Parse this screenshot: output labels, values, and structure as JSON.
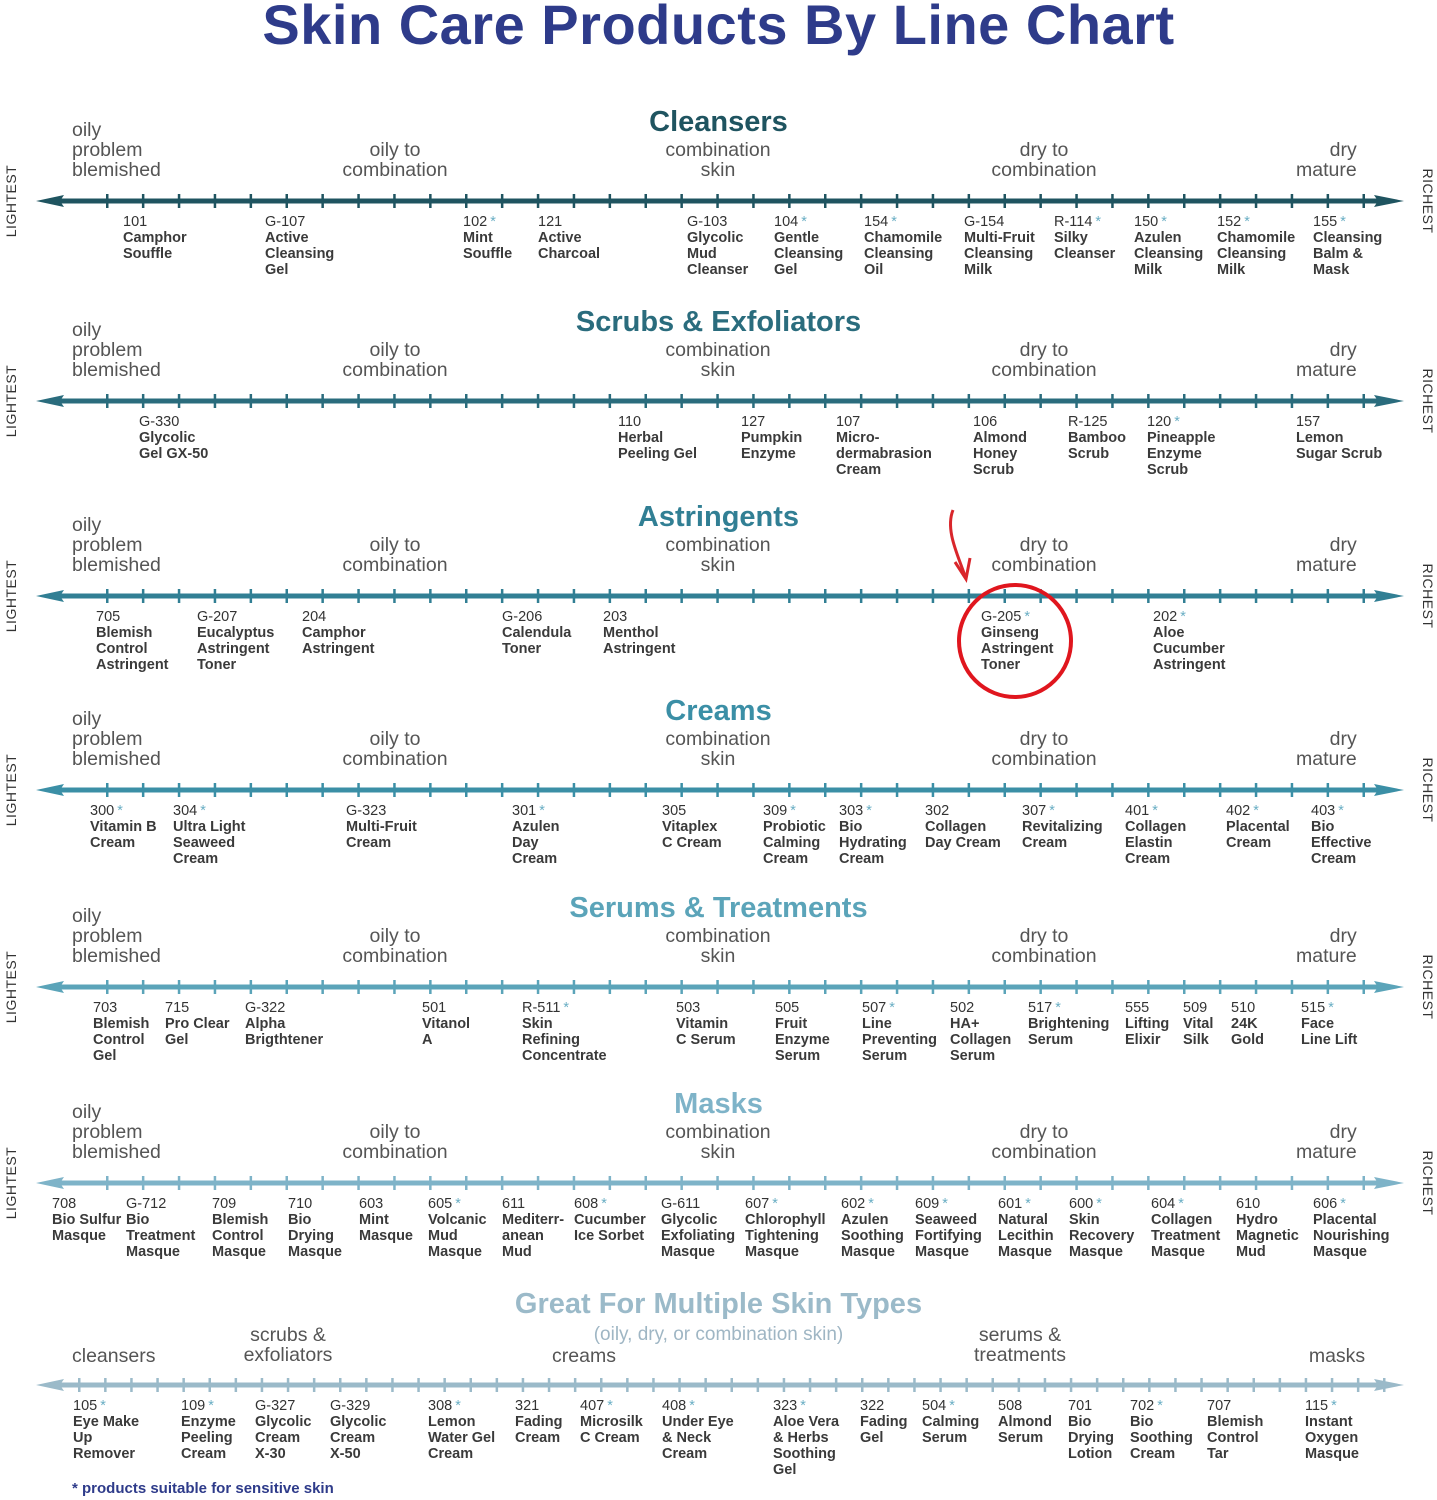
{
  "title": "Skin Care Products By Line Chart",
  "side_labels": {
    "left": "LIGHTEST",
    "right": "RICHEST"
  },
  "zones": {
    "oily": [
      "oily",
      "problem",
      "blemished"
    ],
    "oily_combo": [
      "oily to",
      "combination"
    ],
    "combo": [
      "combination",
      "skin"
    ],
    "dry_combo": [
      "dry to",
      "combination"
    ],
    "dry": [
      "dry",
      "mature"
    ]
  },
  "annotation": {
    "highlighted_product": "G-205",
    "circle_color": "#e0161e"
  },
  "footnote": "* products suitable for sensitive skin",
  "sections": [
    {
      "title": "Cleansers",
      "color": "#1f5460",
      "products": [
        {
          "code": "101",
          "sensitive": false,
          "name": [
            "Camphor",
            "Souffle"
          ]
        },
        {
          "code": "G-107",
          "sensitive": false,
          "name": [
            "Active",
            "Cleansing",
            "Gel"
          ]
        },
        {
          "code": "102",
          "sensitive": true,
          "name": [
            "Mint",
            "Souffle"
          ]
        },
        {
          "code": "121",
          "sensitive": false,
          "name": [
            "Active",
            "Charcoal"
          ]
        },
        {
          "code": "G-103",
          "sensitive": false,
          "name": [
            "Glycolic",
            "Mud",
            "Cleanser"
          ]
        },
        {
          "code": "104",
          "sensitive": true,
          "name": [
            "Gentle",
            "Cleansing",
            "Gel"
          ]
        },
        {
          "code": "154",
          "sensitive": true,
          "name": [
            "Chamomile",
            "Cleansing",
            "Oil"
          ]
        },
        {
          "code": "G-154",
          "sensitive": false,
          "name": [
            "Multi-Fruit",
            "Cleansing",
            "Milk"
          ]
        },
        {
          "code": "R-114",
          "sensitive": true,
          "name": [
            "Silky",
            "Cleanser"
          ]
        },
        {
          "code": "150",
          "sensitive": true,
          "name": [
            "Azulen",
            "Cleansing",
            "Milk"
          ]
        },
        {
          "code": "152",
          "sensitive": true,
          "name": [
            "Chamomile",
            "Cleansing",
            "Milk"
          ]
        },
        {
          "code": "155",
          "sensitive": true,
          "name": [
            "Cleansing",
            "Balm &",
            "Mask"
          ]
        }
      ]
    },
    {
      "title": "Scrubs & Exfoliators",
      "color": "#2a6c7d",
      "products": [
        {
          "code": "G-330",
          "sensitive": false,
          "name": [
            "Glycolic",
            "Gel GX-50"
          ]
        },
        {
          "code": "110",
          "sensitive": false,
          "name": [
            "Herbal",
            "Peeling Gel"
          ]
        },
        {
          "code": "127",
          "sensitive": false,
          "name": [
            "Pumpkin",
            "Enzyme"
          ]
        },
        {
          "code": "107",
          "sensitive": false,
          "name": [
            "Micro-",
            "dermabrasion",
            "Cream"
          ]
        },
        {
          "code": "106",
          "sensitive": false,
          "name": [
            "Almond",
            "Honey",
            "Scrub"
          ]
        },
        {
          "code": "R-125",
          "sensitive": false,
          "name": [
            "Bamboo",
            "Scrub"
          ]
        },
        {
          "code": "120",
          "sensitive": true,
          "name": [
            "Pineapple",
            "Enzyme",
            "Scrub"
          ]
        },
        {
          "code": "157",
          "sensitive": false,
          "name": [
            "Lemon",
            "Sugar Scrub"
          ]
        }
      ]
    },
    {
      "title": "Astringents",
      "color": "#317f94",
      "products": [
        {
          "code": "705",
          "sensitive": false,
          "name": [
            "Blemish",
            "Control",
            "Astringent"
          ]
        },
        {
          "code": "G-207",
          "sensitive": false,
          "name": [
            "Eucalyptus",
            "Astringent",
            "Toner"
          ]
        },
        {
          "code": "204",
          "sensitive": false,
          "name": [
            "Camphor",
            "Astringent"
          ]
        },
        {
          "code": "G-206",
          "sensitive": false,
          "name": [
            "Calendula",
            "Toner"
          ]
        },
        {
          "code": "203",
          "sensitive": false,
          "name": [
            "Menthol",
            "Astringent"
          ]
        },
        {
          "code": "G-205",
          "sensitive": true,
          "name": [
            "Ginseng",
            "Astringent",
            "Toner"
          ]
        },
        {
          "code": "202",
          "sensitive": true,
          "name": [
            "Aloe",
            "Cucumber",
            "Astringent"
          ]
        }
      ]
    },
    {
      "title": "Creams",
      "color": "#3b8fa6",
      "products": [
        {
          "code": "300",
          "sensitive": true,
          "name": [
            "Vitamin B",
            "Cream"
          ]
        },
        {
          "code": "304",
          "sensitive": true,
          "name": [
            "Ultra Light",
            "Seaweed",
            "Cream"
          ]
        },
        {
          "code": "G-323",
          "sensitive": false,
          "name": [
            "Multi-Fruit",
            "Cream"
          ]
        },
        {
          "code": "301",
          "sensitive": true,
          "name": [
            "Azulen",
            "Day",
            "Cream"
          ]
        },
        {
          "code": "305",
          "sensitive": false,
          "name": [
            "Vitaplex",
            "C Cream"
          ]
        },
        {
          "code": "309",
          "sensitive": true,
          "name": [
            "Probiotic",
            "Calming",
            "Cream"
          ]
        },
        {
          "code": "303",
          "sensitive": true,
          "name": [
            "Bio",
            "Hydrating",
            "Cream"
          ]
        },
        {
          "code": "302",
          "sensitive": false,
          "name": [
            "Collagen",
            "Day Cream"
          ]
        },
        {
          "code": "307",
          "sensitive": true,
          "name": [
            "Revitalizing",
            "Cream"
          ]
        },
        {
          "code": "401",
          "sensitive": true,
          "name": [
            "Collagen",
            "Elastin",
            "Cream"
          ]
        },
        {
          "code": "402",
          "sensitive": true,
          "name": [
            "Placental",
            "Cream"
          ]
        },
        {
          "code": "403",
          "sensitive": true,
          "name": [
            "Bio",
            "Effective",
            "Cream"
          ]
        }
      ]
    },
    {
      "title": "Serums & Treatments",
      "color": "#5ba4b9",
      "products": [
        {
          "code": "703",
          "sensitive": false,
          "name": [
            "Blemish",
            "Control",
            "Gel"
          ]
        },
        {
          "code": "715",
          "sensitive": false,
          "name": [
            "Pro Clear",
            "Gel"
          ]
        },
        {
          "code": "G-322",
          "sensitive": false,
          "name": [
            "Alpha",
            "Brigthtener"
          ]
        },
        {
          "code": "501",
          "sensitive": false,
          "name": [
            "Vitanol",
            "A"
          ]
        },
        {
          "code": "R-511",
          "sensitive": true,
          "name": [
            "Skin",
            "Refining",
            "Concentrate"
          ]
        },
        {
          "code": "503",
          "sensitive": false,
          "name": [
            "Vitamin",
            "C Serum"
          ]
        },
        {
          "code": "505",
          "sensitive": false,
          "name": [
            "Fruit",
            "Enzyme",
            "Serum"
          ]
        },
        {
          "code": "507",
          "sensitive": true,
          "name": [
            "Line",
            "Preventing",
            "Serum"
          ]
        },
        {
          "code": "502",
          "sensitive": false,
          "name": [
            "HA+",
            "Collagen",
            "Serum"
          ]
        },
        {
          "code": "517",
          "sensitive": true,
          "name": [
            "Brightening",
            "Serum"
          ]
        },
        {
          "code": "555",
          "sensitive": false,
          "name": [
            "Lifting",
            "Elixir"
          ]
        },
        {
          "code": "509",
          "sensitive": false,
          "name": [
            "Vital",
            "Silk"
          ]
        },
        {
          "code": "510",
          "sensitive": false,
          "name": [
            "24K",
            "Gold"
          ]
        },
        {
          "code": "515",
          "sensitive": true,
          "name": [
            "Face",
            "Line Lift"
          ]
        }
      ]
    },
    {
      "title": "Masks",
      "color": "#7eb3c8",
      "products": [
        {
          "code": "708",
          "sensitive": false,
          "name": [
            "Bio Sulfur",
            "Masque"
          ]
        },
        {
          "code": "G-712",
          "sensitive": false,
          "name": [
            "Bio",
            "Treatment",
            "Masque"
          ]
        },
        {
          "code": "709",
          "sensitive": false,
          "name": [
            "Blemish",
            "Control",
            "Masque"
          ]
        },
        {
          "code": "710",
          "sensitive": false,
          "name": [
            "Bio",
            "Drying",
            "Masque"
          ]
        },
        {
          "code": "603",
          "sensitive": false,
          "name": [
            "Mint",
            "Masque"
          ]
        },
        {
          "code": "605",
          "sensitive": true,
          "name": [
            "Volcanic",
            "Mud",
            "Masque"
          ]
        },
        {
          "code": "611",
          "sensitive": false,
          "name": [
            "Mediterr-",
            "anean",
            "Mud"
          ]
        },
        {
          "code": "608",
          "sensitive": true,
          "name": [
            "Cucumber",
            "Ice Sorbet"
          ]
        },
        {
          "code": "G-611",
          "sensitive": false,
          "name": [
            "Glycolic",
            "Exfoliating",
            "Masque"
          ]
        },
        {
          "code": "607",
          "sensitive": true,
          "name": [
            "Chlorophyll",
            "Tightening",
            "Masque"
          ]
        },
        {
          "code": "602",
          "sensitive": true,
          "name": [
            "Azulen",
            "Soothing",
            "Masque"
          ]
        },
        {
          "code": "609",
          "sensitive": true,
          "name": [
            "Seaweed",
            "Fortifying",
            "Masque"
          ]
        },
        {
          "code": "601",
          "sensitive": true,
          "name": [
            "Natural",
            "Lecithin",
            "Masque"
          ]
        },
        {
          "code": "600",
          "sensitive": true,
          "name": [
            "Skin",
            "Recovery",
            "Masque"
          ]
        },
        {
          "code": "604",
          "sensitive": true,
          "name": [
            "Collagen",
            "Treatment",
            "Masque"
          ]
        },
        {
          "code": "610",
          "sensitive": false,
          "name": [
            "Hydro",
            "Magnetic",
            "Mud"
          ]
        },
        {
          "code": "606",
          "sensitive": true,
          "name": [
            "Placental",
            "Nourishing",
            "Masque"
          ]
        }
      ]
    }
  ],
  "multi": {
    "title": "Great For Multiple Skin Types",
    "subtitle": "(oily, dry, or combination skin)",
    "color": "#9bbac9",
    "zones": {
      "cleansers": [
        "cleansers"
      ],
      "scrubs": [
        "scrubs &",
        "exfoliators"
      ],
      "creams": [
        "creams"
      ],
      "serums": [
        "serums &",
        "treatments"
      ],
      "masks": [
        "masks"
      ]
    },
    "products": [
      {
        "code": "105",
        "sensitive": true,
        "name": [
          "Eye Make",
          "Up",
          "Remover"
        ]
      },
      {
        "code": "109",
        "sensitive": true,
        "name": [
          "Enzyme",
          "Peeling",
          "Cream"
        ]
      },
      {
        "code": "G-327",
        "sensitive": false,
        "name": [
          "Glycolic",
          "Cream",
          "X-30"
        ]
      },
      {
        "code": "G-329",
        "sensitive": false,
        "name": [
          "Glycolic",
          "Cream",
          "X-50"
        ]
      },
      {
        "code": "308",
        "sensitive": true,
        "name": [
          "Lemon",
          "Water Gel",
          "Cream"
        ]
      },
      {
        "code": "321",
        "sensitive": false,
        "name": [
          "Fading",
          "Cream"
        ]
      },
      {
        "code": "407",
        "sensitive": true,
        "name": [
          "Microsilk",
          "C Cream"
        ]
      },
      {
        "code": "408",
        "sensitive": true,
        "name": [
          "Under Eye",
          "& Neck",
          "Cream"
        ]
      },
      {
        "code": "323",
        "sensitive": true,
        "name": [
          "Aloe Vera",
          "& Herbs",
          "Soothing",
          "Gel"
        ]
      },
      {
        "code": "322",
        "sensitive": false,
        "name": [
          "Fading",
          "Gel"
        ]
      },
      {
        "code": "504",
        "sensitive": true,
        "name": [
          "Calming",
          "Serum"
        ]
      },
      {
        "code": "508",
        "sensitive": false,
        "name": [
          "Almond",
          "Serum"
        ]
      },
      {
        "code": "701",
        "sensitive": false,
        "name": [
          "Bio",
          "Drying",
          "Lotion"
        ]
      },
      {
        "code": "702",
        "sensitive": true,
        "name": [
          "Bio",
          "Soothing",
          "Cream"
        ]
      },
      {
        "code": "707",
        "sensitive": false,
        "name": [
          "Blemish",
          "Control",
          "Tar"
        ]
      },
      {
        "code": "115",
        "sensitive": true,
        "name": [
          "Instant",
          "Oxygen",
          "Masque"
        ]
      }
    ]
  }
}
